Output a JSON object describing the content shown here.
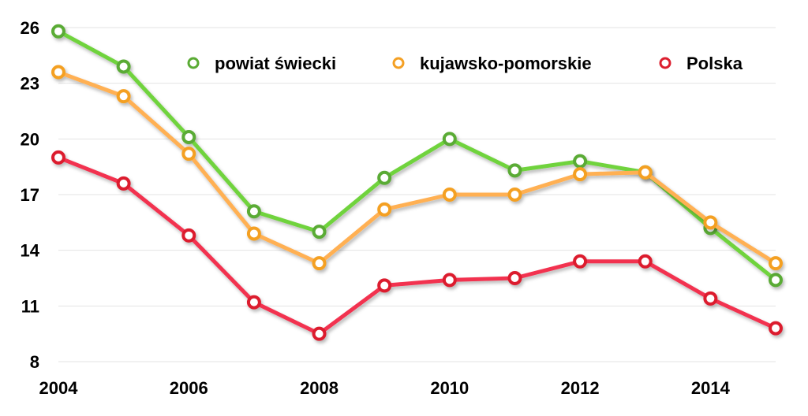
{
  "chart_data": {
    "type": "line",
    "title": "",
    "xlabel": "",
    "ylabel": "",
    "x": [
      2004,
      2005,
      2006,
      2007,
      2008,
      2009,
      2010,
      2011,
      2012,
      2013,
      2014,
      2015
    ],
    "xlim": [
      2004,
      2015
    ],
    "ylim": [
      8,
      26
    ],
    "x_ticks": [
      "2004",
      "2006",
      "2008",
      "2010",
      "2012",
      "2014"
    ],
    "y_ticks": [
      "8",
      "11",
      "14",
      "17",
      "20",
      "23",
      "26"
    ],
    "grid": "horizontal",
    "legend_position": "top-right",
    "series": [
      {
        "name": "powiat świecki",
        "color": "#6fd33c",
        "marker_color": "#5aab34",
        "values": [
          25.8,
          23.9,
          20.1,
          16.1,
          15.0,
          17.9,
          20.0,
          18.3,
          18.8,
          18.2,
          15.2,
          12.4
        ]
      },
      {
        "name": "kujawsko-pomorskie",
        "color": "#ffb052",
        "marker_color": "#f4a024",
        "values": [
          23.6,
          22.3,
          19.2,
          14.9,
          13.3,
          16.2,
          17.0,
          17.0,
          18.1,
          18.2,
          15.5,
          13.3
        ]
      },
      {
        "name": "Polska",
        "color": "#f2334f",
        "marker_color": "#dc1f2f",
        "values": [
          19.0,
          17.6,
          14.8,
          11.2,
          9.5,
          12.1,
          12.4,
          12.5,
          13.4,
          13.4,
          11.4,
          9.8
        ]
      }
    ]
  }
}
